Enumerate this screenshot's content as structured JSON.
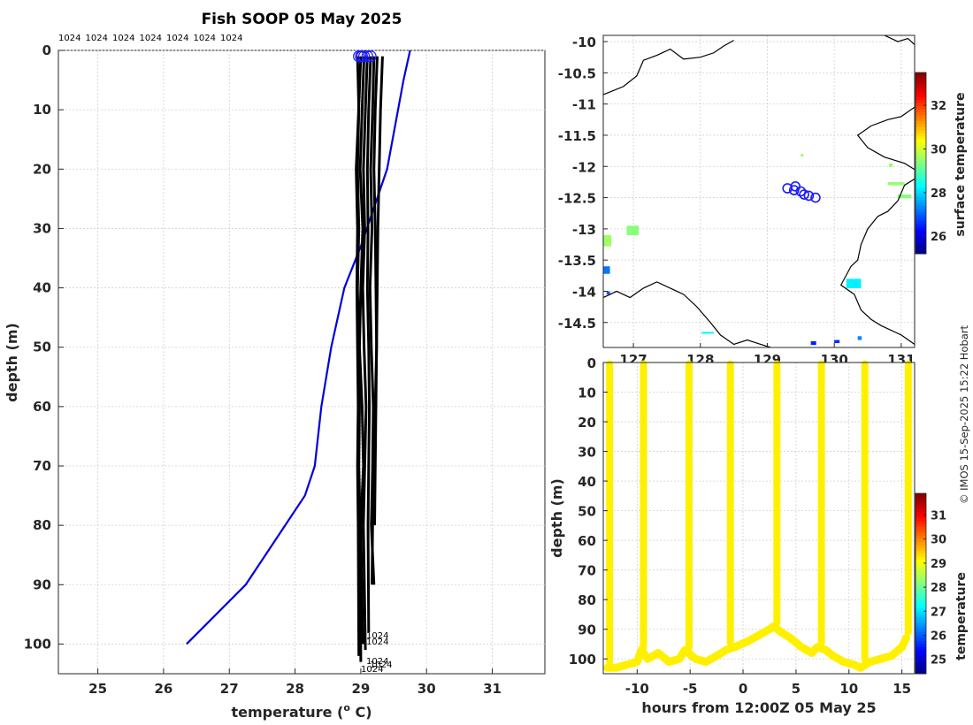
{
  "title": "Fish SOOP 05 May 2025",
  "credit": "© IMOS 15-Sep-2025 15:22 Hobart",
  "chart_data": [
    {
      "id": "profile",
      "type": "line",
      "title": "Fish SOOP 05 May 2025",
      "xlabel": "temperature (",
      "xlabel_sup": "o",
      "xlabel_tail": " C)",
      "ylabel": "depth (m)",
      "xlim": [
        24.4,
        31.8
      ],
      "ylim": [
        105,
        0
      ],
      "xticks": [
        25,
        26,
        27,
        28,
        29,
        30,
        31
      ],
      "yticks": [
        0,
        10,
        20,
        30,
        40,
        50,
        60,
        70,
        80,
        90,
        100
      ],
      "top_labels": [
        "1024",
        "1024",
        "1024",
        "1024",
        "1024",
        "1024",
        "1024"
      ],
      "bottom_labels": [
        "1024",
        "1024",
        "1024",
        "1024",
        "1024"
      ],
      "climatology": {
        "color": "#0000dd",
        "x": [
          29.75,
          29.65,
          29.4,
          29.0,
          28.75,
          28.55,
          28.4,
          28.3,
          28.15,
          27.85,
          27.25,
          26.35
        ],
        "y": [
          0,
          5,
          20,
          33,
          40,
          50,
          60,
          70,
          75,
          80,
          90,
          100
        ]
      },
      "profiles": [
        {
          "x": [
            29.05,
            29.02,
            28.99,
            29.03,
            29.0,
            28.98,
            29.02,
            29.04,
            29.0,
            29.03
          ],
          "y": [
            1,
            10,
            20,
            30,
            40,
            50,
            60,
            70,
            80,
            100
          ]
        },
        {
          "x": [
            29.1,
            29.07,
            29.04,
            29.06,
            29.03,
            29.05,
            29.08,
            29.06,
            29.04,
            29.07
          ],
          "y": [
            1,
            10,
            20,
            30,
            40,
            50,
            60,
            70,
            80,
            101
          ]
        },
        {
          "x": [
            29.2,
            29.18,
            29.15,
            29.17,
            29.14,
            29.16,
            29.19,
            29.18,
            29.16,
            29.2
          ],
          "y": [
            1,
            10,
            20,
            30,
            40,
            50,
            60,
            70,
            80,
            90
          ]
        },
        {
          "x": [
            29.33,
            29.3,
            29.28,
            29.26,
            29.25,
            29.24,
            29.23,
            29.22,
            29.21
          ],
          "y": [
            1,
            10,
            20,
            30,
            40,
            50,
            60,
            70,
            80
          ]
        },
        {
          "x": [
            29.15,
            29.12,
            29.1,
            29.11,
            29.1,
            29.12,
            29.13,
            29.12,
            29.11,
            29.12
          ],
          "y": [
            1,
            10,
            20,
            30,
            40,
            50,
            60,
            70,
            80,
            98
          ]
        },
        {
          "x": [
            28.95,
            28.97,
            28.95,
            28.97,
            28.95,
            28.97,
            28.98,
            28.97,
            28.99,
            29.0
          ],
          "y": [
            1,
            10,
            20,
            30,
            40,
            50,
            60,
            70,
            80,
            103
          ]
        },
        {
          "x": [
            29.0,
            28.96,
            28.93,
            28.95,
            28.94,
            28.95,
            28.96,
            28.95,
            28.96,
            28.97
          ],
          "y": [
            1,
            12,
            20,
            30,
            40,
            50,
            60,
            70,
            80,
            102
          ]
        },
        {
          "x": [
            29.25,
            29.22,
            29.2,
            29.22,
            29.23,
            29.24,
            29.22,
            29.2,
            29.18,
            29.17
          ],
          "y": [
            1,
            10,
            20,
            30,
            40,
            50,
            60,
            70,
            80,
            90
          ]
        }
      ],
      "surface_markers": [
        29.0,
        28.97,
        29.05,
        29.1,
        29.15,
        29.02
      ]
    },
    {
      "id": "map",
      "type": "heatmap",
      "colorbar_label": "surface temperature",
      "xlim": [
        126.55,
        131.2
      ],
      "ylim": [
        -14.9,
        -9.9
      ],
      "yticks": [
        -10,
        -10.5,
        -11,
        -11.5,
        -12,
        -12.5,
        -13,
        -13.5,
        -14,
        -14.5
      ],
      "xticks": [
        127,
        128,
        129,
        130,
        131
      ],
      "clim": [
        25.2,
        33.5
      ],
      "cticks": [
        26,
        28,
        30,
        32
      ],
      "positions": [
        {
          "lon": 129.3,
          "lat": -12.35
        },
        {
          "lon": 129.42,
          "lat": -12.32
        },
        {
          "lon": 129.5,
          "lat": -12.4
        },
        {
          "lon": 129.55,
          "lat": -12.45
        },
        {
          "lon": 129.62,
          "lat": -12.47
        },
        {
          "lon": 129.72,
          "lat": -12.5
        },
        {
          "lon": 129.4,
          "lat": -12.38
        }
      ],
      "patches": [
        {
          "lon": 126.55,
          "lat": -13.1,
          "w": 0.12,
          "h": 0.18,
          "t": 29.6
        },
        {
          "lon": 126.9,
          "lat": -12.95,
          "w": 0.18,
          "h": 0.15,
          "t": 29.4
        },
        {
          "lon": 126.55,
          "lat": -13.6,
          "w": 0.1,
          "h": 0.12,
          "t": 27.2
        },
        {
          "lon": 126.6,
          "lat": -14.0,
          "w": 0.05,
          "h": 0.05,
          "t": 27.0
        },
        {
          "lon": 130.8,
          "lat": -12.25,
          "w": 0.25,
          "h": 0.05,
          "t": 29.5
        },
        {
          "lon": 130.95,
          "lat": -12.45,
          "w": 0.2,
          "h": 0.06,
          "t": 29.4
        },
        {
          "lon": 130.82,
          "lat": -11.95,
          "w": 0.05,
          "h": 0.06,
          "t": 29.6
        },
        {
          "lon": 129.5,
          "lat": -11.8,
          "w": 0.04,
          "h": 0.04,
          "t": 29.5
        },
        {
          "lon": 130.18,
          "lat": -13.8,
          "w": 0.22,
          "h": 0.15,
          "t": 28.2
        },
        {
          "lon": 128.02,
          "lat": -14.65,
          "w": 0.18,
          "h": 0.03,
          "t": 28.3
        },
        {
          "lon": 129.65,
          "lat": -14.8,
          "w": 0.08,
          "h": 0.06,
          "t": 26.5
        },
        {
          "lon": 130.0,
          "lat": -14.78,
          "w": 0.08,
          "h": 0.05,
          "t": 26.6
        },
        {
          "lon": 130.35,
          "lat": -14.72,
          "w": 0.06,
          "h": 0.06,
          "t": 27.3
        }
      ],
      "coastlines": [
        [
          [
            126.55,
            -10.85
          ],
          [
            126.85,
            -10.72
          ],
          [
            127.05,
            -10.55
          ],
          [
            127.15,
            -10.3
          ],
          [
            127.35,
            -10.22
          ],
          [
            127.55,
            -10.12
          ],
          [
            127.75,
            -10.28
          ],
          [
            128.0,
            -10.25
          ],
          [
            128.2,
            -10.18
          ],
          [
            128.35,
            -10.07
          ],
          [
            128.5,
            -9.98
          ]
        ],
        [
          [
            130.75,
            -9.9
          ],
          [
            130.95,
            -10.0
          ],
          [
            131.1,
            -9.95
          ],
          [
            131.2,
            -10.05
          ]
        ],
        [
          [
            131.2,
            -11.05
          ],
          [
            131.0,
            -11.2
          ],
          [
            130.8,
            -11.25
          ],
          [
            130.55,
            -11.35
          ],
          [
            130.35,
            -11.5
          ],
          [
            130.5,
            -11.7
          ],
          [
            130.75,
            -11.85
          ],
          [
            131.05,
            -11.95
          ],
          [
            131.2,
            -12.05
          ]
        ],
        [
          [
            131.2,
            -12.2
          ],
          [
            131.05,
            -12.3
          ],
          [
            130.95,
            -12.55
          ],
          [
            130.8,
            -12.72
          ],
          [
            130.65,
            -12.8
          ],
          [
            130.5,
            -13.0
          ],
          [
            130.4,
            -13.25
          ],
          [
            130.35,
            -13.5
          ],
          [
            130.25,
            -13.6
          ],
          [
            130.1,
            -13.9
          ],
          [
            130.3,
            -14.05
          ],
          [
            130.4,
            -14.3
          ],
          [
            130.55,
            -14.45
          ],
          [
            130.7,
            -14.55
          ],
          [
            131.0,
            -14.7
          ],
          [
            131.2,
            -14.85
          ]
        ],
        [
          [
            126.55,
            -14.1
          ],
          [
            126.75,
            -14.0
          ],
          [
            126.95,
            -14.1
          ],
          [
            127.15,
            -13.95
          ],
          [
            127.35,
            -13.85
          ],
          [
            127.55,
            -13.95
          ],
          [
            127.75,
            -14.05
          ],
          [
            127.95,
            -14.25
          ],
          [
            128.15,
            -14.5
          ],
          [
            128.3,
            -14.7
          ],
          [
            128.5,
            -14.85
          ],
          [
            128.7,
            -14.78
          ],
          [
            128.9,
            -14.85
          ],
          [
            129.05,
            -14.9
          ]
        ]
      ]
    },
    {
      "id": "timeseries",
      "type": "scatter",
      "xlabel": "hours from 12:00Z 05 May 25",
      "ylabel": "depth (m)",
      "colorbar_label": "temperature",
      "xlim": [
        -13.2,
        16.2
      ],
      "ylim": [
        105,
        0
      ],
      "xticks": [
        -10,
        -5,
        0,
        5,
        10,
        15
      ],
      "yticks": [
        0,
        10,
        20,
        30,
        40,
        50,
        60,
        70,
        80,
        90,
        100
      ],
      "clim": [
        24.4,
        31.9
      ],
      "cticks": [
        25,
        26,
        27,
        28,
        29,
        30,
        31
      ],
      "point_temperature": 29.2,
      "casts": [
        {
          "t": -12.6,
          "start": -13.0
        },
        {
          "t": -9.4,
          "start": -11.5
        },
        {
          "t": -5.1,
          "start": -7.5
        },
        {
          "t": -1.2,
          "start": -3.5
        },
        {
          "t": 3.2,
          "start": 1.0
        },
        {
          "t": 7.4,
          "start": 5.0
        },
        {
          "t": 11.5,
          "start": 9.0
        },
        {
          "t": 15.6,
          "start": 13.5
        }
      ],
      "bottom_track": {
        "t": [
          -12.8,
          -12.0,
          -11.0,
          -10.0,
          -9.6,
          -9.0,
          -8.0,
          -7.0,
          -6.0,
          -5.5,
          -4.5,
          -3.5,
          -2.5,
          -1.6,
          -0.8,
          0.5,
          1.5,
          2.5,
          2.9,
          3.6,
          4.5,
          5.5,
          6.5,
          7.0,
          7.8,
          8.5,
          9.5,
          10.5,
          11.1,
          12.0,
          13.0,
          14.0,
          15.0,
          15.4
        ],
        "d": [
          103,
          103,
          102,
          101,
          97,
          100,
          98,
          101,
          100,
          97,
          100,
          101,
          99,
          97,
          96,
          94,
          92,
          90,
          89,
          91,
          93,
          96,
          98,
          96,
          97,
          99,
          101,
          102,
          103,
          101,
          100,
          99,
          96,
          93
        ]
      }
    }
  ]
}
